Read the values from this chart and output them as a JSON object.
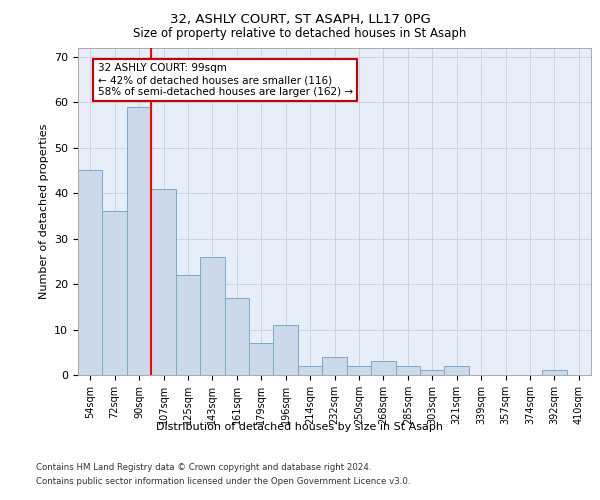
{
  "title1": "32, ASHLY COURT, ST ASAPH, LL17 0PG",
  "title2": "Size of property relative to detached houses in St Asaph",
  "xlabel": "Distribution of detached houses by size in St Asaph",
  "ylabel": "Number of detached properties",
  "categories": [
    "54sqm",
    "72sqm",
    "90sqm",
    "107sqm",
    "125sqm",
    "143sqm",
    "161sqm",
    "179sqm",
    "196sqm",
    "214sqm",
    "232sqm",
    "250sqm",
    "268sqm",
    "285sqm",
    "303sqm",
    "321sqm",
    "339sqm",
    "357sqm",
    "374sqm",
    "392sqm",
    "410sqm"
  ],
  "values": [
    45,
    36,
    59,
    41,
    22,
    26,
    17,
    7,
    11,
    2,
    4,
    2,
    3,
    2,
    1,
    2,
    0,
    0,
    0,
    1,
    0
  ],
  "bar_color": "#ccd9ea",
  "bar_edge_color": "#7aaac8",
  "grid_color": "#c8d0dc",
  "bg_color": "#e8eef7",
  "red_line_x": 2.5,
  "annotation_text": "32 ASHLY COURT: 99sqm\n← 42% of detached houses are smaller (116)\n58% of semi-detached houses are larger (162) →",
  "annotation_box_color": "#ffffff",
  "annotation_box_edge": "#cc0000",
  "ylim": [
    0,
    72
  ],
  "yticks": [
    0,
    10,
    20,
    30,
    40,
    50,
    60,
    70
  ],
  "footer1": "Contains HM Land Registry data © Crown copyright and database right 2024.",
  "footer2": "Contains public sector information licensed under the Open Government Licence v3.0."
}
